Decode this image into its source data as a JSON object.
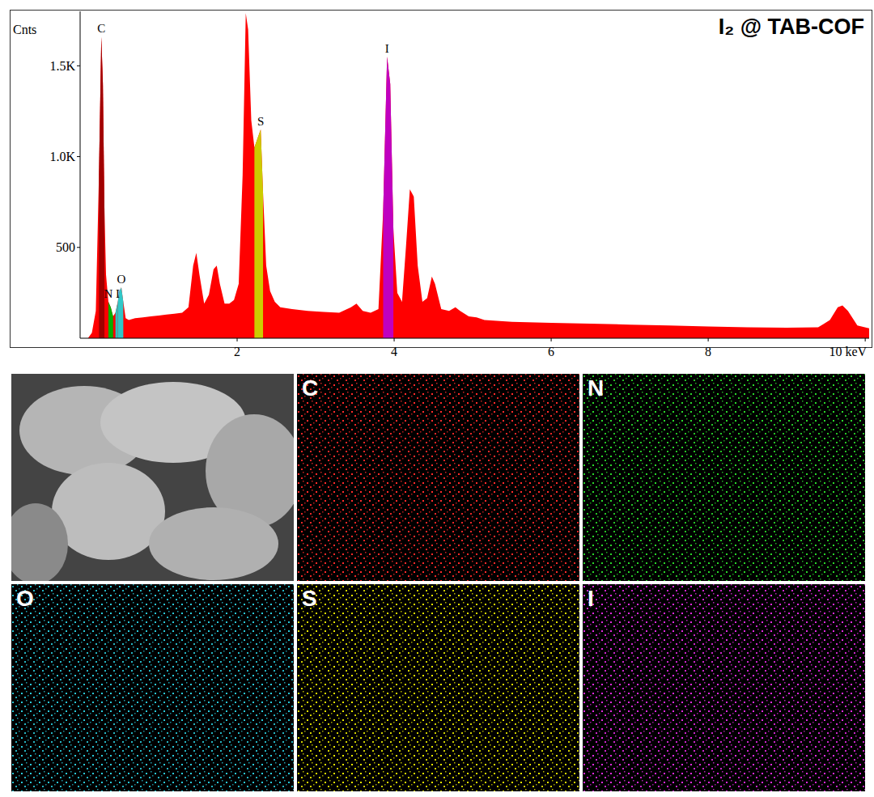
{
  "chart_data": {
    "type": "area",
    "title": "I₂ @ TAB-COF",
    "y_label": "Cnts",
    "x": [
      0.1,
      0.15,
      0.2,
      0.24,
      0.27,
      0.29,
      0.31,
      0.33,
      0.36,
      0.39,
      0.42,
      0.45,
      0.48,
      0.5,
      0.525,
      0.55,
      0.58,
      0.62,
      0.7,
      0.8,
      0.9,
      1.0,
      1.1,
      1.2,
      1.3,
      1.38,
      1.44,
      1.48,
      1.52,
      1.58,
      1.64,
      1.7,
      1.74,
      1.78,
      1.84,
      1.9,
      1.96,
      2.02,
      2.07,
      2.11,
      2.14,
      2.18,
      2.22,
      2.26,
      2.3,
      2.33,
      2.37,
      2.42,
      2.48,
      2.55,
      2.7,
      2.9,
      3.1,
      3.3,
      3.45,
      3.52,
      3.6,
      3.7,
      3.8,
      3.86,
      3.91,
      3.95,
      3.99,
      4.04,
      4.1,
      4.15,
      4.2,
      4.25,
      4.3,
      4.36,
      4.42,
      4.48,
      4.52,
      4.6,
      4.7,
      4.78,
      4.84,
      4.95,
      5.05,
      5.15,
      5.5,
      6.0,
      6.5,
      7.0,
      7.5,
      8.0,
      8.5,
      9.0,
      9.4,
      9.55,
      9.65,
      9.71,
      9.78,
      9.9,
      10.05
    ],
    "values": [
      0,
      30,
      150,
      900,
      1660,
      1400,
      700,
      350,
      200,
      170,
      120,
      140,
      200,
      260,
      280,
      200,
      110,
      100,
      110,
      115,
      120,
      125,
      130,
      135,
      140,
      170,
      400,
      470,
      350,
      190,
      240,
      380,
      400,
      300,
      190,
      190,
      210,
      300,
      900,
      1790,
      1700,
      1200,
      1050,
      1100,
      1150,
      800,
      400,
      260,
      200,
      170,
      160,
      150,
      145,
      140,
      170,
      190,
      150,
      140,
      160,
      700,
      1550,
      1400,
      600,
      250,
      200,
      500,
      820,
      780,
      400,
      200,
      220,
      340,
      300,
      160,
      150,
      170,
      150,
      120,
      115,
      100,
      90,
      85,
      80,
      75,
      70,
      65,
      60,
      58,
      60,
      100,
      170,
      180,
      150,
      70,
      55
    ],
    "color": "#ff0000",
    "highlights": [
      {
        "label": "C",
        "range": [
          0.24,
          0.31
        ],
        "color": "#a00000"
      },
      {
        "label": "N",
        "range": [
          0.36,
          0.42
        ],
        "color": "#00b000"
      },
      {
        "label": "I",
        "range": [
          0.45,
          0.48
        ],
        "color": "#30c0c0"
      },
      {
        "label": "O",
        "range": [
          0.48,
          0.55
        ],
        "color": "#30c8c8"
      },
      {
        "label": "S",
        "range": [
          2.22,
          2.33
        ],
        "color": "#cccc00"
      },
      {
        "label": "I",
        "range": [
          3.86,
          3.99
        ],
        "color": "#c000c0"
      }
    ],
    "xlim": [
      0,
      10.05
    ],
    "xticks": [
      2,
      4,
      6,
      8,
      {
        "value": 10,
        "label": "10 keV"
      }
    ],
    "ylim": [
      0,
      1800
    ],
    "yticks": [
      500,
      {
        "value": 1000,
        "label": "1.0K"
      },
      {
        "value": 1500,
        "label": "1.5K"
      }
    ],
    "grid": false
  },
  "maps": {
    "labels": [
      "C",
      "N",
      "O",
      "S",
      "I"
    ],
    "colors": [
      "#ff2a2a",
      "#2ad62a",
      "#2ac8d8",
      "#e6e600",
      "#e02ae0"
    ]
  }
}
